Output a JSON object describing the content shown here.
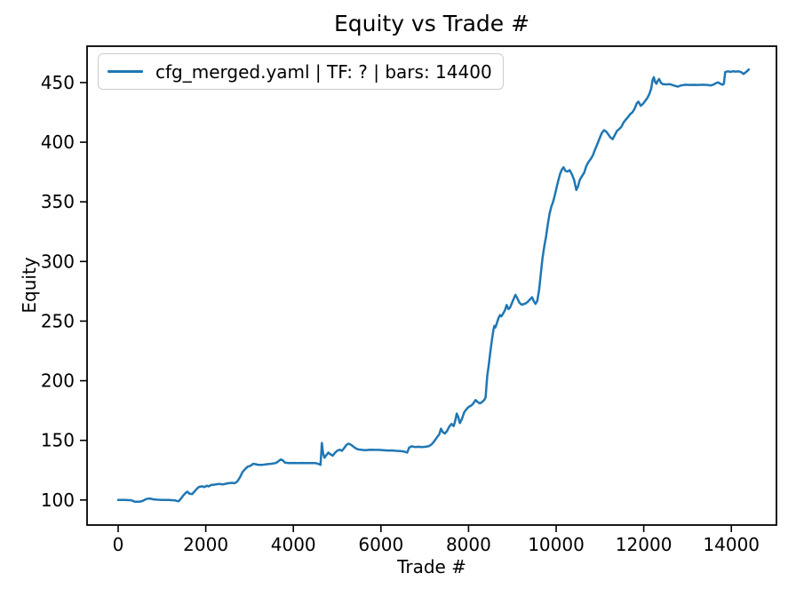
{
  "chart_data": {
    "type": "line",
    "title": "Equity vs Trade #",
    "xlabel": "Trade #",
    "ylabel": "Equity",
    "grid": false,
    "legend": {
      "position": "upper left",
      "entries": [
        {
          "label": "cfg_merged.yaml | TF: ? | bars: 14400",
          "color": "#1f77b4"
        }
      ]
    },
    "axis_color": "#000000",
    "x_ticks": [
      0,
      2000,
      4000,
      6000,
      8000,
      10000,
      12000,
      14000
    ],
    "y_ticks": [
      100,
      150,
      200,
      250,
      300,
      350,
      400,
      450
    ],
    "xlim": [
      -710,
      15030
    ],
    "ylim": [
      79,
      480.5
    ],
    "series": [
      {
        "name": "cfg_merged.yaml | TF: ? | bars: 14400",
        "color": "#1f77b4",
        "line_width": 2.5,
        "points": [
          [
            0,
            100
          ],
          [
            150,
            100
          ],
          [
            300,
            99.8
          ],
          [
            380,
            98.6
          ],
          [
            480,
            98.5
          ],
          [
            560,
            99.2
          ],
          [
            640,
            100.8
          ],
          [
            720,
            101.3
          ],
          [
            800,
            100.6
          ],
          [
            900,
            100.2
          ],
          [
            1000,
            100.1
          ],
          [
            1150,
            100
          ],
          [
            1300,
            99.6
          ],
          [
            1380,
            98.9
          ],
          [
            1430,
            101
          ],
          [
            1480,
            103.5
          ],
          [
            1530,
            105.5
          ],
          [
            1580,
            107
          ],
          [
            1630,
            105.2
          ],
          [
            1690,
            105
          ],
          [
            1740,
            107
          ],
          [
            1800,
            109.5
          ],
          [
            1850,
            111
          ],
          [
            1920,
            111.5
          ],
          [
            1970,
            110.8
          ],
          [
            2020,
            112
          ],
          [
            2070,
            111.4
          ],
          [
            2120,
            112.6
          ],
          [
            2200,
            112.9
          ],
          [
            2300,
            113.5
          ],
          [
            2400,
            113.1
          ],
          [
            2500,
            114
          ],
          [
            2600,
            114.4
          ],
          [
            2660,
            114
          ],
          [
            2720,
            115.5
          ],
          [
            2780,
            119
          ],
          [
            2840,
            123.5
          ],
          [
            2900,
            126
          ],
          [
            2960,
            128
          ],
          [
            3020,
            128.6
          ],
          [
            3080,
            130.3
          ],
          [
            3140,
            130
          ],
          [
            3200,
            129.4
          ],
          [
            3300,
            129.5
          ],
          [
            3400,
            130
          ],
          [
            3500,
            130.4
          ],
          [
            3600,
            131
          ],
          [
            3660,
            132.5
          ],
          [
            3710,
            134
          ],
          [
            3760,
            133.2
          ],
          [
            3810,
            131.4
          ],
          [
            3900,
            131
          ],
          [
            4000,
            131.1
          ],
          [
            4100,
            131
          ],
          [
            4200,
            131.1
          ],
          [
            4300,
            131
          ],
          [
            4400,
            131
          ],
          [
            4500,
            131
          ],
          [
            4580,
            130.2
          ],
          [
            4620,
            129.4
          ],
          [
            4650,
            147.8
          ],
          [
            4680,
            139
          ],
          [
            4710,
            135.5
          ],
          [
            4750,
            137.5
          ],
          [
            4800,
            139.8
          ],
          [
            4850,
            138.2
          ],
          [
            4900,
            137.2
          ],
          [
            4950,
            139.5
          ],
          [
            5000,
            141.3
          ],
          [
            5060,
            142.2
          ],
          [
            5110,
            141.2
          ],
          [
            5160,
            143.5
          ],
          [
            5210,
            146.2
          ],
          [
            5260,
            147.2
          ],
          [
            5310,
            146.4
          ],
          [
            5360,
            145
          ],
          [
            5420,
            143.4
          ],
          [
            5480,
            142.4
          ],
          [
            5560,
            142
          ],
          [
            5650,
            141.8
          ],
          [
            5750,
            142.1
          ],
          [
            5850,
            142
          ],
          [
            5950,
            142
          ],
          [
            6050,
            141.8
          ],
          [
            6150,
            141.5
          ],
          [
            6250,
            141.6
          ],
          [
            6350,
            141.2
          ],
          [
            6450,
            141
          ],
          [
            6530,
            140.6
          ],
          [
            6600,
            139.8
          ],
          [
            6640,
            143.8
          ],
          [
            6700,
            145
          ],
          [
            6780,
            144.4
          ],
          [
            6860,
            144.6
          ],
          [
            6940,
            144.4
          ],
          [
            7020,
            144.6
          ],
          [
            7100,
            145.2
          ],
          [
            7160,
            146.8
          ],
          [
            7220,
            149.5
          ],
          [
            7280,
            152.5
          ],
          [
            7330,
            155
          ],
          [
            7370,
            159.8
          ],
          [
            7410,
            157
          ],
          [
            7460,
            155.8
          ],
          [
            7510,
            158
          ],
          [
            7560,
            161.5
          ],
          [
            7610,
            163.8
          ],
          [
            7660,
            162
          ],
          [
            7700,
            167
          ],
          [
            7730,
            172.5
          ],
          [
            7760,
            170
          ],
          [
            7800,
            164.5
          ],
          [
            7850,
            168
          ],
          [
            7900,
            173.5
          ],
          [
            7950,
            176
          ],
          [
            8000,
            178
          ],
          [
            8060,
            179.2
          ],
          [
            8110,
            181
          ],
          [
            8160,
            183.8
          ],
          [
            8210,
            182
          ],
          [
            8260,
            181
          ],
          [
            8310,
            182.2
          ],
          [
            8360,
            184
          ],
          [
            8390,
            186
          ],
          [
            8410,
            196
          ],
          [
            8430,
            205
          ],
          [
            8450,
            210
          ],
          [
            8470,
            216
          ],
          [
            8490,
            222
          ],
          [
            8510,
            228
          ],
          [
            8530,
            233
          ],
          [
            8550,
            238
          ],
          [
            8570,
            243
          ],
          [
            8590,
            246
          ],
          [
            8610,
            244.5
          ],
          [
            8630,
            246.5
          ],
          [
            8660,
            250
          ],
          [
            8690,
            253
          ],
          [
            8720,
            255
          ],
          [
            8750,
            254
          ],
          [
            8790,
            256.5
          ],
          [
            8830,
            259
          ],
          [
            8870,
            263.5
          ],
          [
            8910,
            260
          ],
          [
            8950,
            261.5
          ],
          [
            9000,
            266
          ],
          [
            9040,
            269.5
          ],
          [
            9070,
            272
          ],
          [
            9110,
            269.5
          ],
          [
            9160,
            265.5
          ],
          [
            9210,
            263.8
          ],
          [
            9260,
            264.2
          ],
          [
            9310,
            265
          ],
          [
            9360,
            266.5
          ],
          [
            9410,
            268.5
          ],
          [
            9450,
            270
          ],
          [
            9490,
            266.5
          ],
          [
            9530,
            264.5
          ],
          [
            9570,
            267
          ],
          [
            9610,
            276
          ],
          [
            9650,
            290
          ],
          [
            9690,
            303
          ],
          [
            9730,
            313
          ],
          [
            9770,
            321
          ],
          [
            9810,
            331
          ],
          [
            9850,
            340
          ],
          [
            9890,
            346
          ],
          [
            9930,
            350
          ],
          [
            9970,
            355.5
          ],
          [
            10010,
            362
          ],
          [
            10050,
            368
          ],
          [
            10090,
            373.5
          ],
          [
            10130,
            377
          ],
          [
            10170,
            379
          ],
          [
            10210,
            376
          ],
          [
            10260,
            375.5
          ],
          [
            10310,
            376.5
          ],
          [
            10360,
            373
          ],
          [
            10410,
            368.5
          ],
          [
            10460,
            360
          ],
          [
            10500,
            363
          ],
          [
            10540,
            368.5
          ],
          [
            10590,
            371.5
          ],
          [
            10640,
            374.5
          ],
          [
            10690,
            380
          ],
          [
            10740,
            383.5
          ],
          [
            10790,
            386
          ],
          [
            10840,
            389
          ],
          [
            10890,
            394
          ],
          [
            10940,
            398.5
          ],
          [
            10990,
            403
          ],
          [
            11040,
            407.5
          ],
          [
            11090,
            410
          ],
          [
            11140,
            409
          ],
          [
            11190,
            406.5
          ],
          [
            11240,
            404
          ],
          [
            11290,
            402.5
          ],
          [
            11340,
            406
          ],
          [
            11390,
            409.5
          ],
          [
            11440,
            411
          ],
          [
            11490,
            413
          ],
          [
            11540,
            416.5
          ],
          [
            11590,
            419
          ],
          [
            11640,
            421
          ],
          [
            11690,
            423.5
          ],
          [
            11740,
            425
          ],
          [
            11790,
            428
          ],
          [
            11840,
            432.5
          ],
          [
            11880,
            434
          ],
          [
            11930,
            430.5
          ],
          [
            11980,
            432
          ],
          [
            12030,
            434.5
          ],
          [
            12080,
            437
          ],
          [
            12130,
            440.5
          ],
          [
            12170,
            445
          ],
          [
            12200,
            452
          ],
          [
            12230,
            454.5
          ],
          [
            12260,
            450.5
          ],
          [
            12290,
            449
          ],
          [
            12320,
            451.5
          ],
          [
            12350,
            453
          ],
          [
            12390,
            450
          ],
          [
            12430,
            448.8
          ],
          [
            12500,
            448.5
          ],
          [
            12600,
            448.6
          ],
          [
            12700,
            447.4
          ],
          [
            12780,
            446.6
          ],
          [
            12850,
            447.6
          ],
          [
            12950,
            448.2
          ],
          [
            13050,
            448
          ],
          [
            13150,
            448.1
          ],
          [
            13250,
            448
          ],
          [
            13350,
            448.2
          ],
          [
            13450,
            448
          ],
          [
            13530,
            447.6
          ],
          [
            13600,
            448.4
          ],
          [
            13650,
            449.5
          ],
          [
            13700,
            450.2
          ],
          [
            13750,
            449
          ],
          [
            13800,
            448.2
          ],
          [
            13830,
            449
          ],
          [
            13860,
            458.8
          ],
          [
            13920,
            459.4
          ],
          [
            13980,
            459
          ],
          [
            14040,
            459.5
          ],
          [
            14100,
            459.2
          ],
          [
            14160,
            459.4
          ],
          [
            14220,
            458.8
          ],
          [
            14280,
            457.2
          ],
          [
            14340,
            459
          ],
          [
            14400,
            461
          ]
        ]
      }
    ]
  }
}
